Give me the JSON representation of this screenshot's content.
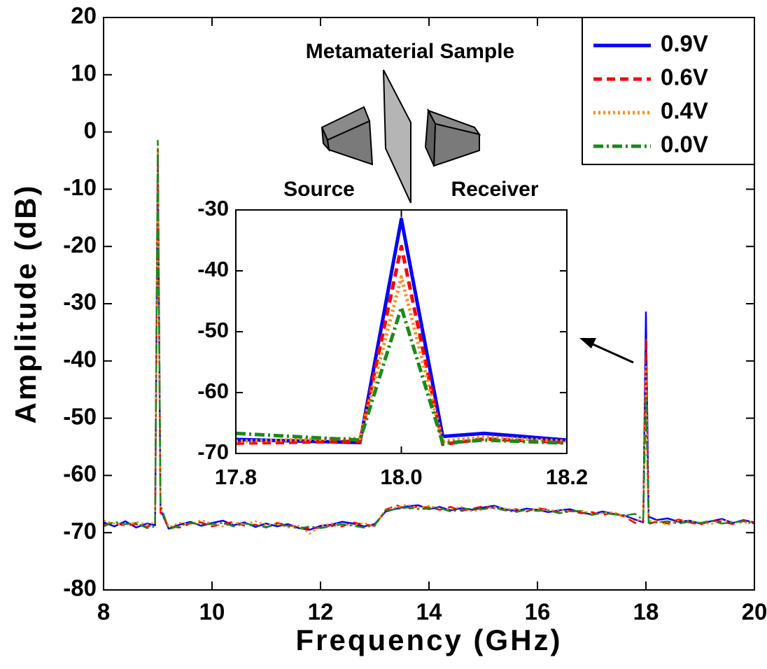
{
  "chart_data": [
    {
      "type": "line",
      "xlabel": "Frequency (GHz)",
      "ylabel": "Amplitude (dB)",
      "annotations": [
        "Metamaterial Sample",
        "Source",
        "Receiver"
      ],
      "legend": "upper right",
      "xlim": [
        8,
        20
      ],
      "ylim": [
        -80,
        20
      ],
      "xticks": [
        8,
        10,
        12,
        14,
        16,
        18,
        20
      ],
      "yticks": [
        20,
        10,
        0,
        -10,
        -20,
        -30,
        -40,
        -50,
        -60,
        -70,
        -80
      ],
      "x": [
        8.0,
        8.2,
        8.4,
        8.6,
        8.8,
        8.95,
        9.0,
        9.05,
        9.2,
        9.4,
        9.6,
        9.8,
        10.0,
        10.2,
        10.4,
        10.6,
        10.8,
        11.0,
        11.2,
        11.4,
        11.6,
        11.8,
        12.0,
        12.2,
        12.4,
        12.6,
        12.8,
        13.0,
        13.2,
        13.4,
        13.6,
        13.8,
        14.0,
        14.2,
        14.4,
        14.6,
        14.8,
        15.0,
        15.2,
        15.4,
        15.6,
        15.8,
        16.0,
        16.2,
        16.4,
        16.6,
        16.8,
        17.0,
        17.2,
        17.4,
        17.6,
        17.8,
        17.95,
        18.0,
        18.05,
        18.2,
        18.4,
        18.6,
        18.8,
        19.0,
        19.2,
        19.4,
        19.6,
        19.8,
        20.0
      ],
      "series": [
        {
          "name": "0.9V",
          "color": "#0000ff",
          "linestyle": "solid",
          "values": [
            -68.2,
            -68.9,
            -68.0,
            -69.1,
            -68.4,
            -68.7,
            -4,
            -66,
            -69.3,
            -68.6,
            -68.1,
            -68.8,
            -68.3,
            -67.9,
            -68.7,
            -68.2,
            -69.0,
            -68.4,
            -68.9,
            -68.5,
            -69.2,
            -69.5,
            -68.8,
            -68.6,
            -68.1,
            -68.4,
            -68.9,
            -68.5,
            -66.3,
            -65.8,
            -65.4,
            -65.2,
            -65.9,
            -65.5,
            -66.1,
            -65.7,
            -66.0,
            -65.6,
            -65.3,
            -65.9,
            -66.2,
            -65.8,
            -66.0,
            -66.4,
            -66.1,
            -65.9,
            -66.5,
            -66.8,
            -66.3,
            -66.7,
            -67.0,
            -67.7,
            -68.2,
            -31.5,
            -67.2,
            -67.8,
            -67.5,
            -68.1,
            -67.9,
            -68.4,
            -68.0,
            -67.6,
            -68.3,
            -67.8,
            -68.2
          ]
        },
        {
          "name": "0.6V",
          "color": "#ff0000",
          "linestyle": "dashed",
          "values": [
            -68.6,
            -68.3,
            -68.8,
            -68.5,
            -69.0,
            -68.4,
            -3,
            -66.5,
            -68.9,
            -69.1,
            -68.4,
            -68.2,
            -68.9,
            -68.5,
            -68.1,
            -68.8,
            -68.6,
            -69.1,
            -68.3,
            -68.7,
            -69.0,
            -69.3,
            -69.1,
            -68.7,
            -68.9,
            -68.2,
            -68.6,
            -68.8,
            -66.0,
            -65.2,
            -65.9,
            -65.4,
            -65.6,
            -66.0,
            -65.5,
            -66.2,
            -65.8,
            -65.4,
            -65.7,
            -66.1,
            -65.9,
            -66.3,
            -65.7,
            -66.0,
            -66.5,
            -66.2,
            -66.6,
            -66.4,
            -66.9,
            -66.5,
            -67.2,
            -68.3,
            -68.0,
            -36,
            -68.5,
            -68.0,
            -68.4,
            -67.7,
            -68.2,
            -68.6,
            -67.9,
            -68.1,
            -68.5,
            -67.9,
            -68.4
          ]
        },
        {
          "name": "0.4V",
          "color": "#ff8c1a",
          "linestyle": "dotted",
          "values": [
            -67.9,
            -68.4,
            -68.7,
            -68.1,
            -68.6,
            -68.2,
            -2.5,
            -65.8,
            -69.0,
            -68.3,
            -68.5,
            -67.8,
            -68.4,
            -68.9,
            -68.3,
            -68.5,
            -68.0,
            -68.7,
            -68.4,
            -69.1,
            -68.8,
            -70.2,
            -68.9,
            -68.4,
            -68.6,
            -68.7,
            -68.3,
            -68.9,
            -65.9,
            -65.6,
            -65.1,
            -65.7,
            -65.3,
            -65.8,
            -65.9,
            -65.5,
            -66.3,
            -65.9,
            -65.5,
            -65.8,
            -66.0,
            -66.1,
            -65.8,
            -66.2,
            -66.0,
            -66.3,
            -66.1,
            -66.7,
            -66.6,
            -66.4,
            -67.1,
            -68.0,
            -67.5,
            -41,
            -68.0,
            -67.9,
            -68.7,
            -67.9,
            -68.0,
            -68.2,
            -68.5,
            -67.8,
            -68.1,
            -68.3,
            -67.9
          ]
        },
        {
          "name": "0.0V",
          "color": "#1a8a1a",
          "linestyle": "dashdot",
          "values": [
            -68.9,
            -68.1,
            -68.5,
            -68.3,
            -69.2,
            -68.9,
            -1.5,
            -65.2,
            -69.4,
            -68.8,
            -68.3,
            -68.6,
            -68.5,
            -68.3,
            -68.9,
            -68.4,
            -68.7,
            -69.0,
            -68.6,
            -68.8,
            -69.3,
            -68.9,
            -69.2,
            -68.9,
            -68.5,
            -68.8,
            -69.1,
            -68.7,
            -66.1,
            -65.9,
            -65.6,
            -65.9,
            -65.8,
            -65.7,
            -66.3,
            -66.0,
            -65.8,
            -65.9,
            -65.6,
            -66.1,
            -66.4,
            -66.0,
            -66.2,
            -66.1,
            -66.6,
            -66.3,
            -66.2,
            -66.9,
            -66.5,
            -66.8,
            -67.0,
            -66.7,
            -67.8,
            -46,
            -68.3,
            -68.2,
            -68.0,
            -68.4,
            -68.1,
            -68.3,
            -67.9,
            -68.4,
            -68.2,
            -68.0,
            -68.5
          ]
        }
      ]
    },
    {
      "type": "line",
      "xlim": [
        17.8,
        18.2
      ],
      "ylim": [
        -70,
        -30
      ],
      "xticks": [
        17.8,
        {
          "value": 18,
          "label": "18.0"
        },
        18.2
      ],
      "yticks": [
        -30,
        -40,
        -50,
        -60,
        -70
      ],
      "x": [
        17.8,
        17.95,
        18.0,
        18.05,
        18.1,
        18.2
      ],
      "series": [
        {
          "color": "#0000ff",
          "linestyle": "solid",
          "values": [
            -67.7,
            -68.2,
            -31.5,
            -67.2,
            -66.7,
            -67.8
          ]
        },
        {
          "color": "#ff0000",
          "linestyle": "dashed",
          "values": [
            -68.3,
            -68.0,
            -36,
            -68.5,
            -67.6,
            -68.2
          ]
        },
        {
          "color": "#ff8c1a",
          "linestyle": "dotted",
          "values": [
            -68.0,
            -67.5,
            -41,
            -68.0,
            -67.3,
            -68.0
          ]
        },
        {
          "color": "#1a8a1a",
          "linestyle": "dashdot",
          "values": [
            -66.7,
            -67.8,
            -46,
            -68.3,
            -67.8,
            -68.3
          ]
        }
      ]
    }
  ]
}
